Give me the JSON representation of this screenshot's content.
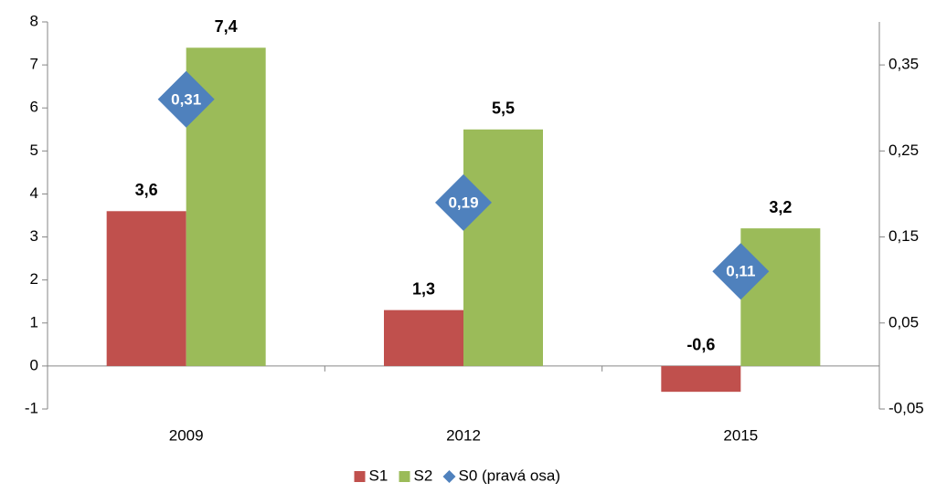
{
  "chart_data": {
    "type": "bar",
    "categories": [
      "2009",
      "2012",
      "2015"
    ],
    "series": [
      {
        "name": "S1",
        "color": "#c0504d",
        "values": [
          3.6,
          1.3,
          -0.6
        ],
        "value_labels": [
          "3,6",
          "1,3",
          "-0,6"
        ]
      },
      {
        "name": "S2",
        "color": "#9bbb59",
        "values": [
          7.4,
          5.5,
          3.2
        ],
        "value_labels": [
          "7,4",
          "5,5",
          "3,2"
        ]
      },
      {
        "name": "S0 (pravá osa)",
        "color": "#4f81bd",
        "axis": "y2",
        "values": [
          0.31,
          0.19,
          0.11
        ],
        "value_labels": [
          "0,31",
          "0,19",
          "0,11"
        ]
      }
    ],
    "ylim": [
      -1,
      8
    ],
    "yticks": [
      -1,
      0,
      1,
      2,
      3,
      4,
      5,
      6,
      7,
      8
    ],
    "y2lim": [
      -0.05,
      0.4
    ],
    "y2ticks": [
      {
        "value": -0.05,
        "label": "-0,05"
      },
      {
        "value": 0.05,
        "label": "0,05"
      },
      {
        "value": 0.15,
        "label": "0,15"
      },
      {
        "value": 0.25,
        "label": "0,25"
      },
      {
        "value": 0.35,
        "label": "0,35"
      }
    ],
    "legend": "bottom"
  }
}
